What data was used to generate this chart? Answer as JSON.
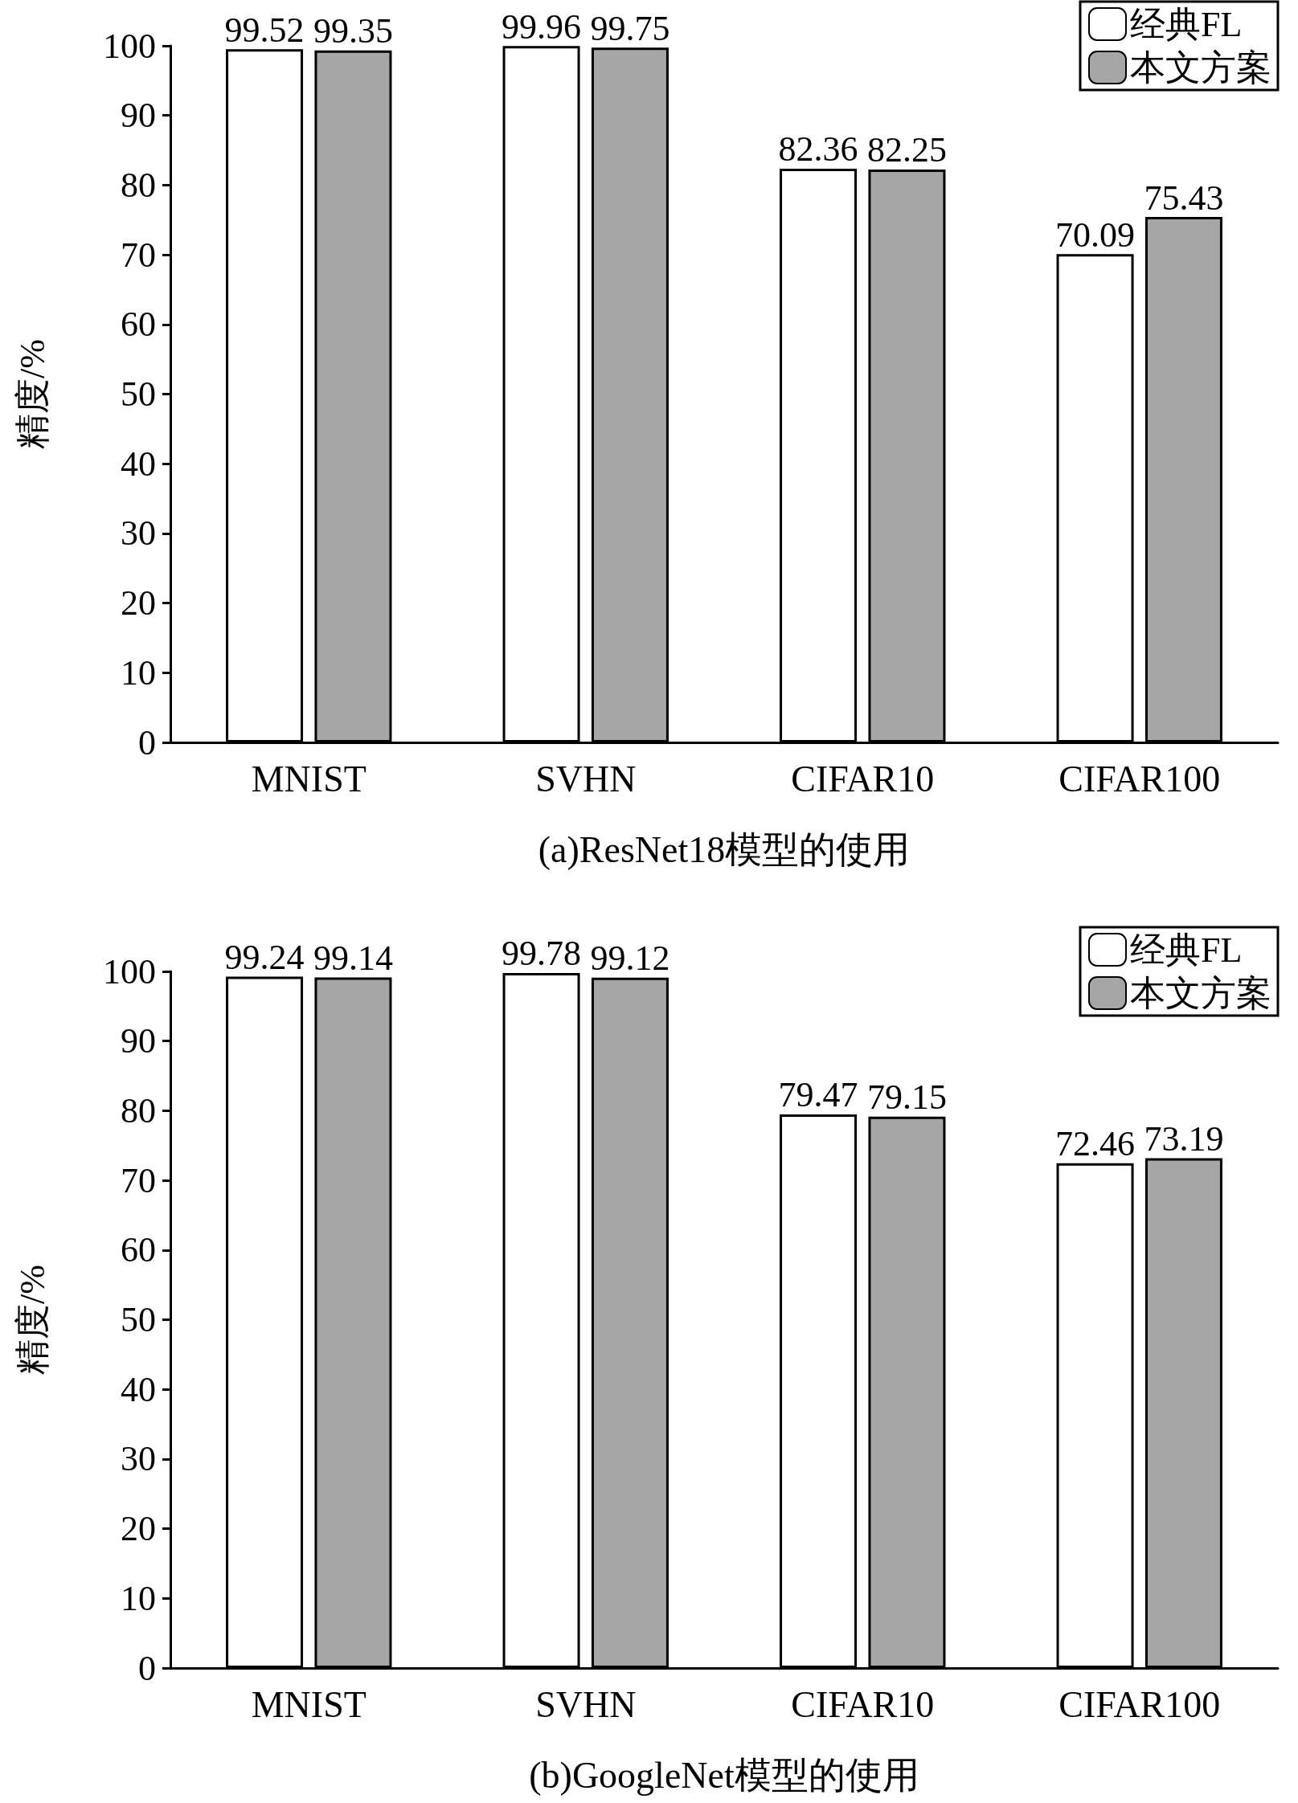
{
  "chart_data": [
    {
      "type": "bar",
      "xlabel": "(a)ResNet18模型的使用",
      "ylabel": "精度/%",
      "categories": [
        "MNIST",
        "SVHN",
        "CIFAR10",
        "CIFAR100"
      ],
      "series": [
        {
          "name": "经典FL",
          "color": "#ffffff",
          "values": [
            99.52,
            99.96,
            82.36,
            70.09
          ]
        },
        {
          "name": "本文方案",
          "color": "#a6a6a6",
          "values": [
            99.35,
            99.75,
            82.25,
            75.43
          ]
        }
      ],
      "ylim": [
        0,
        100
      ],
      "yticks": [
        0,
        10,
        20,
        30,
        40,
        50,
        60,
        70,
        80,
        90,
        100
      ],
      "grid": false,
      "legend": "top right",
      "data_labels": true
    },
    {
      "type": "bar",
      "xlabel": "(b)GoogleNet模型的使用",
      "ylabel": "精度/%",
      "categories": [
        "MNIST",
        "SVHN",
        "CIFAR10",
        "CIFAR100"
      ],
      "series": [
        {
          "name": "经典FL",
          "color": "#ffffff",
          "values": [
            99.24,
            99.78,
            79.47,
            72.46
          ]
        },
        {
          "name": "本文方案",
          "color": "#a6a6a6",
          "values": [
            99.14,
            99.12,
            79.15,
            73.19
          ]
        }
      ],
      "ylim": [
        0,
        100
      ],
      "yticks": [
        0,
        10,
        20,
        30,
        40,
        50,
        60,
        70,
        80,
        90,
        100
      ],
      "grid": false,
      "legend": "top right",
      "data_labels": true
    }
  ]
}
